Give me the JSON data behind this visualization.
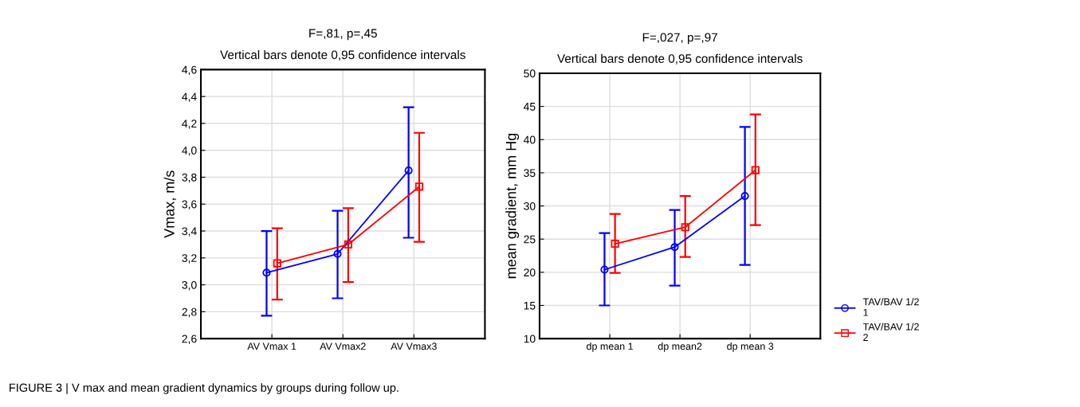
{
  "chart_data": [
    {
      "type": "line",
      "title": "F=,81, p=,45",
      "subtitle": "Vertical bars denote 0,95 confidence intervals",
      "ylabel": "Vmax, m/s",
      "categories": [
        "AV Vmax 1",
        "AV Vmax2",
        "AV Vmax3"
      ],
      "series": [
        {
          "color": "#0000ff",
          "marker": "circle",
          "values": [
            3.09,
            3.23,
            3.85
          ],
          "errors": [
            [
              2.77,
              3.4
            ],
            [
              2.9,
              3.55
            ],
            [
              3.35,
              4.32
            ]
          ]
        },
        {
          "color": "#ff0000",
          "marker": "square",
          "values": [
            3.16,
            3.3,
            3.73
          ],
          "errors": [
            [
              2.89,
              3.42
            ],
            [
              3.02,
              3.57
            ],
            [
              3.32,
              4.13
            ]
          ]
        }
      ],
      "ylim": [
        2.6,
        4.6
      ],
      "yticks": [
        {
          "value": 2.6,
          "label": "2,6"
        },
        {
          "value": 2.8,
          "label": "2,8"
        },
        {
          "value": 3.0,
          "label": "3,0"
        },
        {
          "value": 3.2,
          "label": "3,2"
        },
        {
          "value": 3.4,
          "label": "3,4"
        },
        {
          "value": 3.6,
          "label": "3,6"
        },
        {
          "value": 3.8,
          "label": "3,8"
        },
        {
          "value": 4.0,
          "label": "4,0"
        },
        {
          "value": 4.2,
          "label": "4,2"
        },
        {
          "value": 4.4,
          "label": "4,4"
        },
        {
          "value": 4.6,
          "label": "4,6"
        }
      ],
      "grid": true,
      "annotations": [
        "FIGURE 3 | V max and mean gradient dynamics by groups during follow up."
      ]
    },
    {
      "type": "line",
      "title": "F=,027, p=,97",
      "subtitle": "Vertical bars denote 0,95 confidence intervals",
      "ylabel": "mean gradient, mm Hg",
      "categories": [
        "dp mean 1",
        "dp mean2",
        "dp mean 3"
      ],
      "series": [
        {
          "name": "TAV/BAV 1/2\n1",
          "color": "#0000ff",
          "marker": "circle",
          "values": [
            20.4,
            23.8,
            31.5
          ],
          "errors": [
            [
              15.0,
              25.9
            ],
            [
              18.0,
              29.4
            ],
            [
              21.1,
              41.9
            ]
          ]
        },
        {
          "name": "TAV/BAV 1/2\n2",
          "color": "#ff0000",
          "marker": "square",
          "values": [
            24.3,
            26.8,
            35.4
          ],
          "errors": [
            [
              19.9,
              28.8
            ],
            [
              22.3,
              31.5
            ],
            [
              27.1,
              43.8
            ]
          ]
        }
      ],
      "ylim": [
        10,
        50
      ],
      "yticks": [
        10,
        15,
        20,
        25,
        30,
        35,
        40,
        45,
        50
      ],
      "grid": true,
      "legend": "right"
    }
  ]
}
